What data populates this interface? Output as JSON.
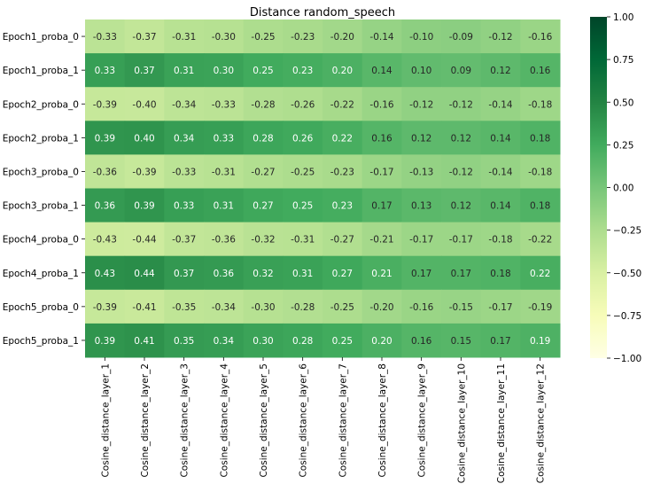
{
  "chart_data": {
    "type": "heatmap",
    "title": "Distance random_speech",
    "xlabel": "",
    "ylabel": "",
    "columns": [
      "Cosine_distance_layer_1",
      "Cosine_distance_layer_2",
      "Cosine_distance_layer_3",
      "Cosine_distance_layer_4",
      "Cosine_distance_layer_5",
      "Cosine_distance_layer_6",
      "Cosine_distance_layer_7",
      "Cosine_distance_layer_8",
      "Cosine_distance_layer_9",
      "Cosine_distance_layer_10",
      "Cosine_distance_layer_11",
      "Cosine_distance_layer_12"
    ],
    "rows": [
      "Epoch1_proba_0",
      "Epoch1_proba_1",
      "Epoch2_proba_0",
      "Epoch2_proba_1",
      "Epoch3_proba_0",
      "Epoch3_proba_1",
      "Epoch4_proba_0",
      "Epoch4_proba_1",
      "Epoch5_proba_0",
      "Epoch5_proba_1"
    ],
    "values": [
      [
        -0.33,
        -0.37,
        -0.31,
        -0.3,
        -0.25,
        -0.23,
        -0.2,
        -0.14,
        -0.1,
        -0.09,
        -0.12,
        -0.16
      ],
      [
        0.33,
        0.37,
        0.31,
        0.3,
        0.25,
        0.23,
        0.2,
        0.14,
        0.1,
        0.09,
        0.12,
        0.16
      ],
      [
        -0.39,
        -0.4,
        -0.34,
        -0.33,
        -0.28,
        -0.26,
        -0.22,
        -0.16,
        -0.12,
        -0.12,
        -0.14,
        -0.18
      ],
      [
        0.39,
        0.4,
        0.34,
        0.33,
        0.28,
        0.26,
        0.22,
        0.16,
        0.12,
        0.12,
        0.14,
        0.18
      ],
      [
        -0.36,
        -0.39,
        -0.33,
        -0.31,
        -0.27,
        -0.25,
        -0.23,
        -0.17,
        -0.13,
        -0.12,
        -0.14,
        -0.18
      ],
      [
        0.36,
        0.39,
        0.33,
        0.31,
        0.27,
        0.25,
        0.23,
        0.17,
        0.13,
        0.12,
        0.14,
        0.18
      ],
      [
        -0.43,
        -0.44,
        -0.37,
        -0.36,
        -0.32,
        -0.31,
        -0.27,
        -0.21,
        -0.17,
        -0.17,
        -0.18,
        -0.22
      ],
      [
        0.43,
        0.44,
        0.37,
        0.36,
        0.32,
        0.31,
        0.27,
        0.21,
        0.17,
        0.17,
        0.18,
        0.22
      ],
      [
        -0.39,
        -0.41,
        -0.35,
        -0.34,
        -0.3,
        -0.28,
        -0.25,
        -0.2,
        -0.16,
        -0.15,
        -0.17,
        -0.19
      ],
      [
        0.39,
        0.41,
        0.35,
        0.34,
        0.3,
        0.28,
        0.25,
        0.2,
        0.16,
        0.15,
        0.17,
        0.19
      ]
    ],
    "vmin": -1.0,
    "vmax": 1.0,
    "colormap": "YlGn",
    "colorbar_ticks": [
      "1.00",
      "0.75",
      "0.50",
      "0.25",
      "0.00",
      "−0.25",
      "−0.50",
      "−0.75",
      "−1.00"
    ],
    "annotations_format": "2 decimals"
  }
}
